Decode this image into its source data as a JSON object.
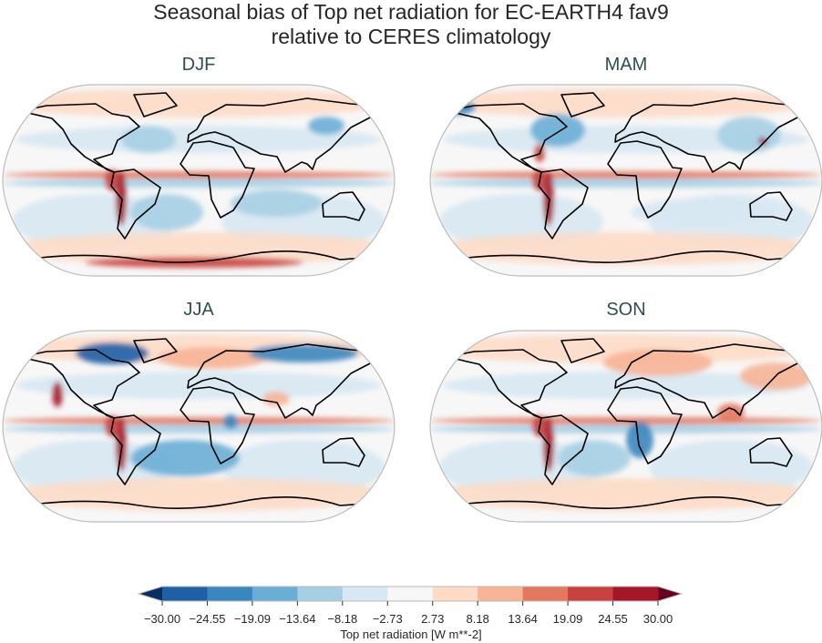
{
  "title_line1": "Seasonal bias of Top net radiation for EC-EARTH4 fav9",
  "title_line2": "relative to CERES climatology",
  "panels": [
    {
      "label": "DJF"
    },
    {
      "label": "MAM"
    },
    {
      "label": "JJA"
    },
    {
      "label": "SON"
    }
  ],
  "colorbar": {
    "label": "Top net radiation [W m**-2]",
    "ticks": [
      "−30.00",
      "−24.55",
      "−19.09",
      "−13.64",
      "−8.18",
      "−2.73",
      "2.73",
      "8.18",
      "13.64",
      "19.09",
      "24.55",
      "30.00"
    ],
    "extend": "both",
    "colors": [
      "#053061",
      "#1f5fa6",
      "#3a87c0",
      "#6aaed6",
      "#a7cfe4",
      "#d7e8f2",
      "#f7f7f7",
      "#fddbc7",
      "#f7b496",
      "#e3785f",
      "#c94240",
      "#a51628",
      "#67001f"
    ],
    "range": [
      -30,
      30
    ]
  }
}
